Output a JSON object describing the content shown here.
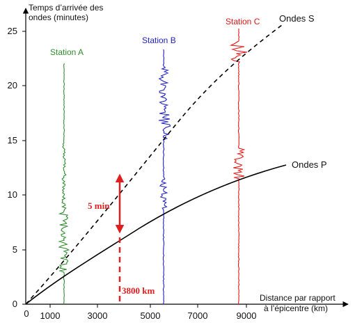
{
  "axes": {
    "y_title_line1": "Temps d’arrivée des",
    "y_title_line2": "ondes (minutes)",
    "x_title_line1": "Distance par rapport",
    "x_title_line2": "à l’épicentre (km)",
    "x_ticks": [
      "0",
      "1000",
      "3000",
      "5000",
      "7000",
      "9000"
    ],
    "y_ticks": [
      "0",
      "5",
      "10",
      "15",
      "20",
      "25"
    ]
  },
  "curves": {
    "p_label": "Ondes P",
    "s_label": "Ondes S",
    "p_color": "#000000",
    "s_color": "#000000"
  },
  "stations": [
    {
      "label": "Station A",
      "color": "#2e8b2e"
    },
    {
      "label": "Station B",
      "color": "#1f1fbf"
    },
    {
      "label": "Station C",
      "color": "#e01515"
    }
  ],
  "annotations": {
    "delay_label": "5 min",
    "distance_label": "3800 km",
    "color": "#e02020"
  }
}
